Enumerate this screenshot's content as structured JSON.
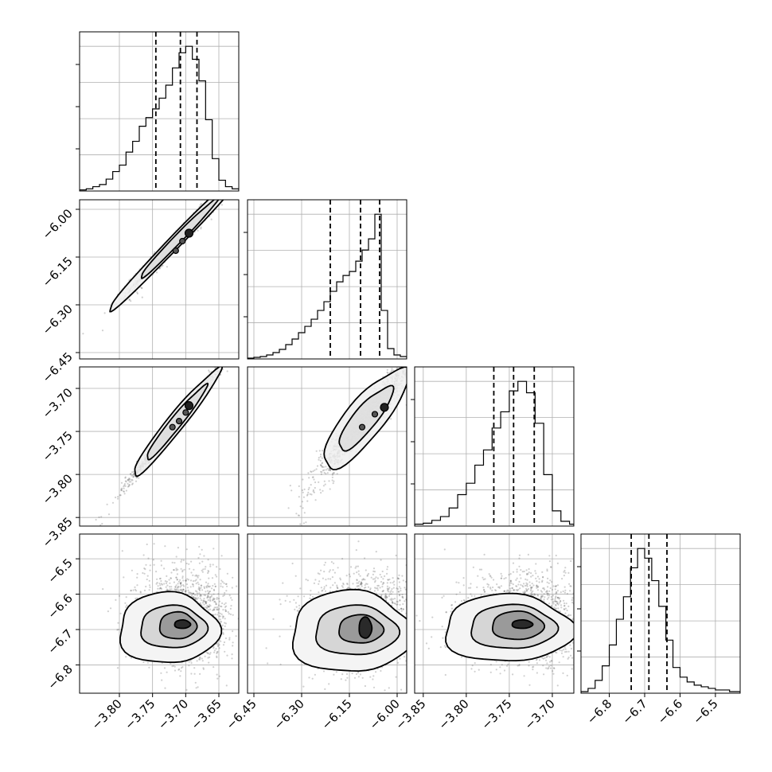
{
  "chart_data": {
    "type": "corner",
    "grid": true,
    "variables": [
      {
        "range": [
          -3.86,
          -3.62
        ],
        "ticks": [
          -3.8,
          -3.75,
          -3.7,
          -3.65
        ],
        "tick_labels": [
          "−3.80",
          "−3.75",
          "−3.70",
          "−3.65"
        ],
        "hist_x": [
          -3.86,
          -3.85,
          -3.84,
          -3.83,
          -3.82,
          -3.81,
          -3.8,
          -3.79,
          -3.78,
          -3.77,
          -3.76,
          -3.75,
          -3.74,
          -3.73,
          -3.72,
          -3.71,
          -3.7,
          -3.69,
          -3.68,
          -3.67,
          -3.66,
          -3.65,
          -3.64,
          -3.63,
          -3.62
        ],
        "hist_counts": [
          0.1,
          0.2,
          0.4,
          0.6,
          1.1,
          1.8,
          2.4,
          3.6,
          4.6,
          6.0,
          6.8,
          7.6,
          8.6,
          9.8,
          11.4,
          12.8,
          13.4,
          12.2,
          10.2,
          6.6,
          3.0,
          1.0,
          0.4,
          0.2
        ],
        "quantiles": [
          -3.745,
          -3.708,
          -3.683
        ]
      },
      {
        "range": [
          -6.47,
          -5.97
        ],
        "ticks": [
          -6.45,
          -6.3,
          -6.15,
          -6.0
        ],
        "tick_labels": [
          "−6.45",
          "−6.30",
          "−6.15",
          "−6.00"
        ],
        "hist_x": [
          -6.47,
          -6.45,
          -6.43,
          -6.41,
          -6.39,
          -6.37,
          -6.35,
          -6.33,
          -6.31,
          -6.29,
          -6.27,
          -6.25,
          -6.23,
          -6.21,
          -6.19,
          -6.17,
          -6.15,
          -6.13,
          -6.11,
          -6.09,
          -6.07,
          -6.05,
          -6.03,
          -6.01,
          -5.99,
          -5.97
        ],
        "hist_counts": [
          0.1,
          0.2,
          0.3,
          0.5,
          0.8,
          1.2,
          1.8,
          2.5,
          3.3,
          4.1,
          5.0,
          6.1,
          7.2,
          8.5,
          9.7,
          10.5,
          11.0,
          12.3,
          13.7,
          15.1,
          18.2,
          6.1,
          1.3,
          0.5,
          0.3
        ],
        "quantiles": [
          -6.21,
          -6.115,
          -6.055
        ]
      },
      {
        "range": [
          -3.86,
          -3.675
        ],
        "ticks": [
          -3.85,
          -3.8,
          -3.75,
          -3.7
        ],
        "tick_labels": [
          "−3.85",
          "−3.80",
          "−3.75",
          "−3.70"
        ],
        "hist_x": [
          -3.86,
          -3.85,
          -3.84,
          -3.83,
          -3.82,
          -3.81,
          -3.8,
          -3.79,
          -3.78,
          -3.77,
          -3.76,
          -3.75,
          -3.74,
          -3.73,
          -3.72,
          -3.71,
          -3.7,
          -3.69,
          -3.68,
          -3.675
        ],
        "hist_counts": [
          0.2,
          0.3,
          0.6,
          1.0,
          1.9,
          3.3,
          4.5,
          6.4,
          8.0,
          10.3,
          12.0,
          14.2,
          15.2,
          14.0,
          10.8,
          5.4,
          1.6,
          0.5,
          0.2
        ],
        "quantiles": [
          -3.768,
          -3.745,
          -3.721
        ]
      },
      {
        "range": [
          -6.88,
          -6.43
        ],
        "ticks": [
          -6.8,
          -6.7,
          -6.6,
          -6.5
        ],
        "tick_labels": [
          "−6.8",
          "−6.7",
          "−6.6",
          "−6.5"
        ],
        "hist_x": [
          -6.88,
          -6.86,
          -6.84,
          -6.82,
          -6.8,
          -6.78,
          -6.76,
          -6.74,
          -6.72,
          -6.7,
          -6.68,
          -6.66,
          -6.64,
          -6.62,
          -6.6,
          -6.58,
          -6.56,
          -6.54,
          -6.52,
          -6.5,
          -6.48,
          -6.46,
          -6.44,
          -6.43
        ],
        "hist_counts": [
          0.1,
          0.3,
          0.8,
          1.7,
          3.0,
          4.6,
          6.0,
          7.8,
          9.0,
          8.4,
          7.0,
          5.4,
          3.3,
          1.6,
          1.0,
          0.7,
          0.5,
          0.4,
          0.3,
          0.2,
          0.2,
          0.1,
          0.1
        ],
        "quantiles": [
          -6.738,
          -6.688,
          -6.637
        ]
      }
    ],
    "pairs": [
      {
        "row": 1,
        "col": 0,
        "type": "linear",
        "center": [
          -3.71,
          -6.09
        ],
        "span_x": [
          -3.84,
          -3.625
        ],
        "slope": 2.15,
        "spread_y": 0.012,
        "contours": [
          [
            0.22,
            0.009
          ],
          [
            0.12,
            0.006
          ]
        ],
        "blobs": [
          [
            -3.695,
            -6.075
          ],
          [
            -3.705,
            -6.1
          ],
          [
            -3.715,
            -6.13
          ]
        ]
      },
      {
        "row": 2,
        "col": 0,
        "type": "linear",
        "center": [
          -3.715,
          -3.74
        ],
        "span_x": [
          -3.85,
          -3.625
        ],
        "slope": 0.96,
        "spread_y": 0.0035,
        "contours": [
          [
            0.13,
            0.0045
          ],
          [
            0.09,
            0.003
          ]
        ],
        "blobs": [
          [
            -3.695,
            -3.72
          ],
          [
            -3.7,
            -3.728
          ],
          [
            -3.71,
            -3.738
          ],
          [
            -3.72,
            -3.745
          ]
        ]
      },
      {
        "row": 2,
        "col": 1,
        "type": "linear",
        "center": [
          -6.1,
          -3.735
        ],
        "span_x": [
          -6.44,
          -5.97
        ],
        "slope": 0.45,
        "spread_y": 0.007,
        "contours": [
          [
            0.25,
            0.01
          ],
          [
            0.16,
            0.006
          ]
        ],
        "blobs": [
          [
            -6.04,
            -3.722
          ],
          [
            -6.07,
            -3.73
          ],
          [
            -6.11,
            -3.745
          ]
        ]
      },
      {
        "row": 3,
        "col": 0,
        "type": "blob",
        "center": [
          -3.705,
          -6.685
        ],
        "sx": 0.035,
        "sy": 0.065,
        "contours": [
          [
            0.075,
            0.1
          ],
          [
            0.05,
            0.06
          ],
          [
            0.028,
            0.038
          ],
          [
            0.012,
            0.012
          ]
        ]
      },
      {
        "row": 3,
        "col": 1,
        "type": "blob",
        "center": [
          -6.1,
          -6.695
        ],
        "sx": 0.095,
        "sy": 0.065,
        "contours": [
          [
            0.19,
            0.115
          ],
          [
            0.13,
            0.07
          ],
          [
            0.07,
            0.04
          ],
          [
            0.02,
            0.03
          ]
        ]
      },
      {
        "row": 3,
        "col": 2,
        "type": "blob",
        "center": [
          -3.735,
          -6.685
        ],
        "sx": 0.035,
        "sy": 0.06,
        "contours": [
          [
            0.075,
            0.095
          ],
          [
            0.05,
            0.062
          ],
          [
            0.03,
            0.04
          ],
          [
            0.012,
            0.012
          ]
        ]
      }
    ]
  }
}
